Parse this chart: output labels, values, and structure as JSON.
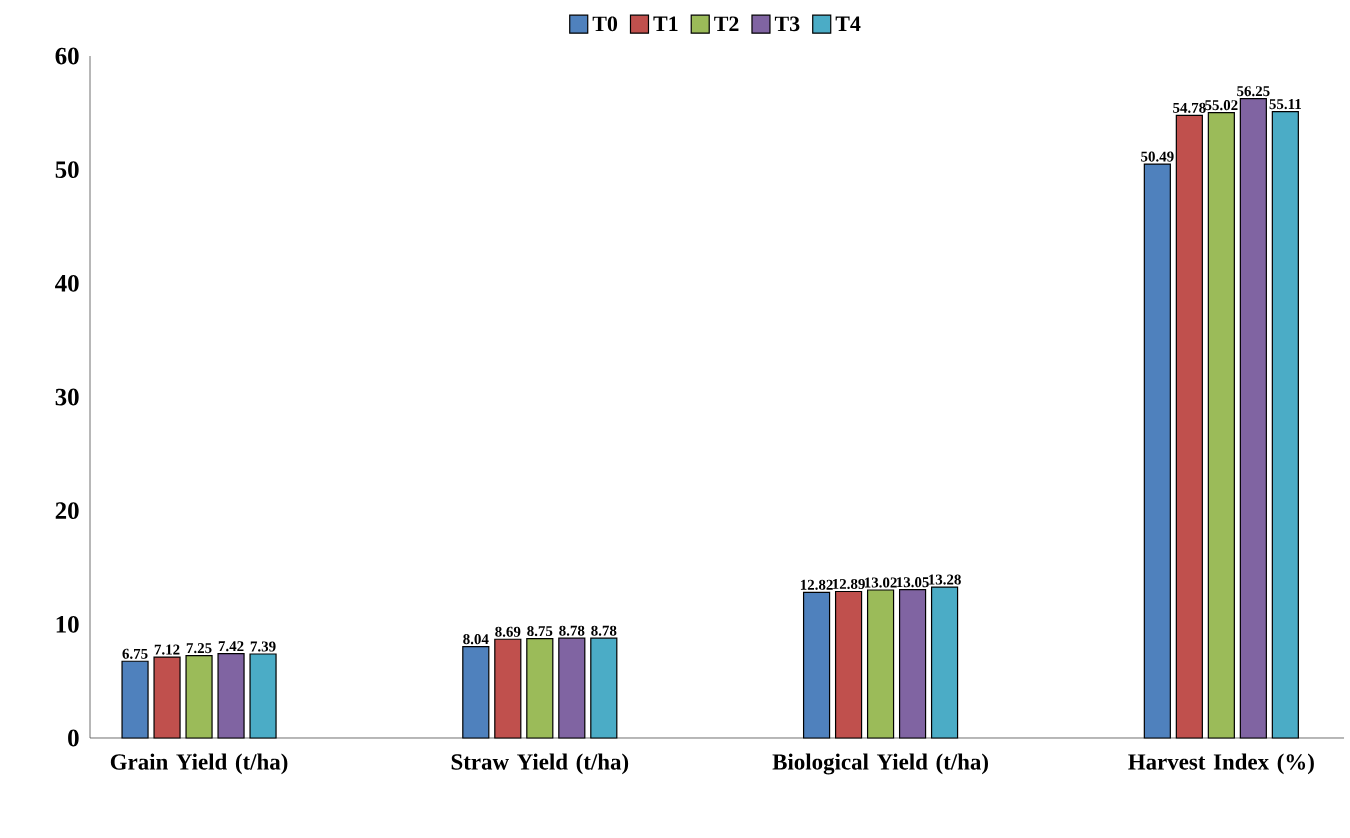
{
  "chart_data": {
    "type": "bar",
    "categories": [
      "Grain Yield (t/ha)",
      "Straw Yield (t/ha)",
      "Biological Yield (t/ha)",
      "Harvest Index (%)"
    ],
    "series": [
      {
        "name": "T0",
        "color": "#4f81bd",
        "values": [
          6.75,
          8.04,
          12.82,
          50.49
        ],
        "value_labels": [
          "6.75",
          "8.04",
          "12.82",
          "50.49"
        ]
      },
      {
        "name": "T1",
        "color": "#c0504d",
        "values": [
          7.12,
          8.69,
          12.89,
          54.78
        ],
        "value_labels": [
          "7.12",
          "8.69",
          "12.89",
          "54.78"
        ]
      },
      {
        "name": "T2",
        "color": "#9bbb59",
        "values": [
          7.25,
          8.75,
          13.02,
          55.02
        ],
        "value_labels": [
          "7.25",
          "8.75",
          "13.02",
          "55.02"
        ]
      },
      {
        "name": "T3",
        "color": "#8064a2",
        "values": [
          7.42,
          8.78,
          13.05,
          56.25
        ],
        "value_labels": [
          "7.42",
          "8.78",
          "13.05",
          "56.25"
        ]
      },
      {
        "name": "T4",
        "color": "#4bacc6",
        "values": [
          7.39,
          8.78,
          13.28,
          55.11
        ],
        "value_labels": [
          "7.39",
          "8.78",
          "13.28",
          "55.11"
        ]
      }
    ],
    "ylim": [
      0,
      60
    ],
    "yticks": [
      0,
      10,
      20,
      30,
      40,
      50,
      60
    ],
    "grid": false,
    "legend": "top"
  }
}
